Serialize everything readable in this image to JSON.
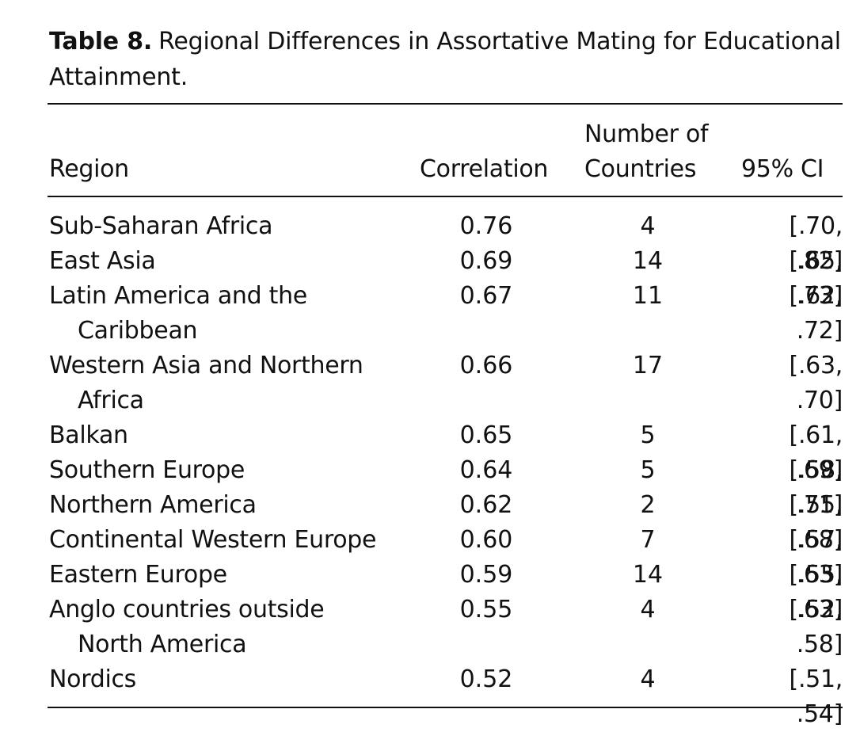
{
  "caption": {
    "label": "Table 8.",
    "text": "Regional Differences in Assortative Mating for Educational Attainment."
  },
  "headers": {
    "region": "Region",
    "correlation": "Correlation",
    "countries_line1": "Number of",
    "countries_line2": "Countries",
    "ci": "95% CI"
  },
  "rows": [
    {
      "region": [
        "Sub-Saharan Africa"
      ],
      "correlation": "0.76",
      "countries": "4",
      "ci": "[.70, .82]"
    },
    {
      "region": [
        "East Asia"
      ],
      "correlation": "0.69",
      "countries": "14",
      "ci": "[.65, .73]"
    },
    {
      "region": [
        "Latin America and the",
        "Caribbean"
      ],
      "correlation": "0.67",
      "countries": "11",
      "ci": "[.62, .72]"
    },
    {
      "region": [
        "Western Asia and Northern",
        "Africa"
      ],
      "correlation": "0.66",
      "countries": "17",
      "ci": "[.63, .70]"
    },
    {
      "region": [
        "Balkan"
      ],
      "correlation": "0.65",
      "countries": "5",
      "ci": "[.61, .69]"
    },
    {
      "region": [
        "Southern Europe"
      ],
      "correlation": "0.64",
      "countries": "5",
      "ci": "[.58, .71]"
    },
    {
      "region": [
        "Northern America"
      ],
      "correlation": "0.62",
      "countries": "2",
      "ci": "[.55, .68]"
    },
    {
      "region": [
        "Continental Western Europe"
      ],
      "correlation": "0.60",
      "countries": "7",
      "ci": "[.57, .63]"
    },
    {
      "region": [
        "Eastern Europe"
      ],
      "correlation": "0.59",
      "countries": "14",
      "ci": "[.55, .63]"
    },
    {
      "region": [
        "Anglo countries outside",
        "North America"
      ],
      "correlation": "0.55",
      "countries": "4",
      "ci": "[.52, .58]"
    },
    {
      "region": [
        "Nordics"
      ],
      "correlation": "0.52",
      "countries": "4",
      "ci": "[.51, .54]"
    }
  ]
}
